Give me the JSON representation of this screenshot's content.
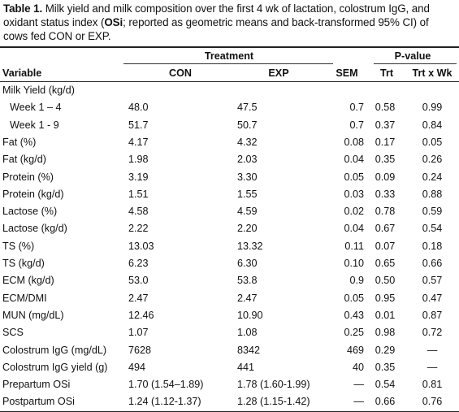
{
  "caption": {
    "label": "Table 1.",
    "text_1": " Milk yield and milk composition over the first 4 wk of lactation, colostrum IgG, and oxidant status index (",
    "osi": "OSi",
    "text_2": "; reported as geometric means and back-transformed 95% CI) of cows fed CON or EXP."
  },
  "header": {
    "treatment": "Treatment",
    "pvalue": "P-value",
    "variable": "Variable",
    "con": "CON",
    "exp": "EXP",
    "sem": "SEM",
    "trt": "Trt",
    "trt_wk": "Trt x Wk"
  },
  "rows": [
    {
      "variable": "Milk Yield (kg/d)",
      "con": "",
      "exp": "",
      "sem": "",
      "trt": "",
      "trt_wk": "",
      "indent": false
    },
    {
      "variable": "Week 1 – 4",
      "con": "48.0",
      "exp": "47.5",
      "sem": "0.7",
      "trt": "0.58",
      "trt_wk": "0.99",
      "indent": true
    },
    {
      "variable": "Week 1 - 9",
      "con": "51.7",
      "exp": "50.7",
      "sem": "0.7",
      "trt": "0.37",
      "trt_wk": "0.84",
      "indent": true
    },
    {
      "variable": "Fat (%)",
      "con": "4.17",
      "exp": "4.32",
      "sem": "0.08",
      "trt": "0.17",
      "trt_wk": "0.05",
      "indent": false
    },
    {
      "variable": "Fat (kg/d)",
      "con": "1.98",
      "exp": "2.03",
      "sem": "0.04",
      "trt": "0.35",
      "trt_wk": "0.26",
      "indent": false
    },
    {
      "variable": "Protein (%)",
      "con": "3.19",
      "exp": "3.30",
      "sem": "0.05",
      "trt": "0.09",
      "trt_wk": "0.24",
      "indent": false
    },
    {
      "variable": "Protein (kg/d)",
      "con": "1.51",
      "exp": "1.55",
      "sem": "0.03",
      "trt": "0.33",
      "trt_wk": "0.88",
      "indent": false
    },
    {
      "variable": "Lactose (%)",
      "con": "4.58",
      "exp": "4.59",
      "sem": "0.02",
      "trt": "0.78",
      "trt_wk": "0.59",
      "indent": false
    },
    {
      "variable": "Lactose (kg/d)",
      "con": "2.22",
      "exp": "2.20",
      "sem": "0.04",
      "trt": "0.67",
      "trt_wk": "0.54",
      "indent": false
    },
    {
      "variable": "TS (%)",
      "con": "13.03",
      "exp": "13.32",
      "sem": "0.11",
      "trt": "0.07",
      "trt_wk": "0.18",
      "indent": false
    },
    {
      "variable": "TS (kg/d)",
      "con": "6.23",
      "exp": "6.30",
      "sem": "0.10",
      "trt": "0.65",
      "trt_wk": "0.66",
      "indent": false
    },
    {
      "variable": "ECM (kg/d)",
      "con": "53.0",
      "exp": "53.8",
      "sem": "0.9",
      "trt": "0.50",
      "trt_wk": "0.57",
      "indent": false
    },
    {
      "variable": "ECM/DMI",
      "con": "2.47",
      "exp": "2.47",
      "sem": "0.05",
      "trt": "0.95",
      "trt_wk": "0.47",
      "indent": false
    },
    {
      "variable": "MUN (mg/dL)",
      "con": "12.46",
      "exp": "10.90",
      "sem": "0.43",
      "trt": "0.01",
      "trt_wk": "0.87",
      "indent": false
    },
    {
      "variable": "SCS",
      "con": "1.07",
      "exp": "1.08",
      "sem": "0.25",
      "trt": "0.98",
      "trt_wk": "0.72",
      "indent": false
    },
    {
      "variable": "Colostrum IgG (mg/dL)",
      "con": "7628",
      "exp": "8342",
      "sem": "469",
      "trt": "0.29",
      "trt_wk": "—",
      "indent": false
    },
    {
      "variable": "Colostrum IgG yield (g)",
      "con": "494",
      "exp": "441",
      "sem": "40",
      "trt": "0.35",
      "trt_wk": "—",
      "indent": false
    },
    {
      "variable": "Prepartum OSi",
      "con": "1.70 (1.54–1.89)",
      "exp": "1.78 (1.60-1.99)",
      "sem": "—",
      "trt": "0.54",
      "trt_wk": "0.81",
      "indent": false
    },
    {
      "variable": "Postpartum OSi",
      "con": "1.24 (1.12-1.37)",
      "exp": "1.28 (1.15-1.42)",
      "sem": "—",
      "trt": "0.66",
      "trt_wk": "0.76",
      "indent": false
    }
  ]
}
